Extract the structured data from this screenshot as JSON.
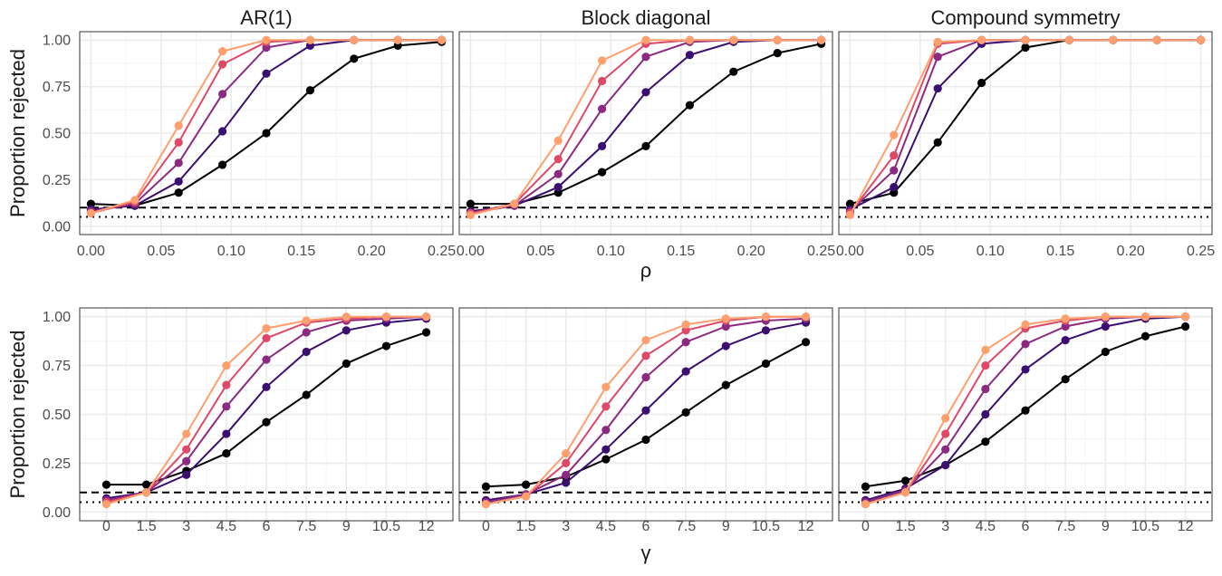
{
  "chart_data": {
    "type": "line",
    "layout": "faceted 2 rows x 3 columns",
    "ylabel": "Proportion rejected",
    "ylim": [
      0,
      1
    ],
    "yticks": [
      "0.00",
      "0.25",
      "0.50",
      "0.75",
      "1.00"
    ],
    "reference_lines": [
      {
        "y": 0.1,
        "style": "dashed"
      },
      {
        "y": 0.05,
        "style": "dotted"
      }
    ],
    "series_colors": [
      "#000000",
      "#3b0f70",
      "#8c2981",
      "#de4968",
      "#fe9f6d"
    ],
    "grid": true,
    "legend": "none",
    "panel_titles": [
      "AR(1)",
      "Block diagonal",
      "Compound symmetry"
    ],
    "rows": [
      {
        "xlabel": "ρ",
        "xlim": [
          -0.008,
          0.258
        ],
        "xticks": [
          0.0,
          0.05,
          0.1,
          0.15,
          0.2,
          0.25
        ],
        "xtick_labels": [
          "0.00",
          "0.05",
          "0.10",
          "0.15",
          "0.20",
          "0.25"
        ],
        "x": [
          0.0,
          0.03125,
          0.0625,
          0.09375,
          0.125,
          0.15625,
          0.1875,
          0.21875,
          0.25
        ],
        "panels": [
          {
            "series": [
              {
                "values": [
                  0.12,
                  0.11,
                  0.18,
                  0.33,
                  0.5,
                  0.73,
                  0.9,
                  0.97,
                  0.99
                ]
              },
              {
                "values": [
                  0.09,
                  0.11,
                  0.24,
                  0.51,
                  0.82,
                  0.97,
                  1.0,
                  1.0,
                  1.0
                ]
              },
              {
                "values": [
                  0.08,
                  0.12,
                  0.34,
                  0.71,
                  0.96,
                  1.0,
                  1.0,
                  1.0,
                  1.0
                ]
              },
              {
                "values": [
                  0.07,
                  0.13,
                  0.45,
                  0.87,
                  0.99,
                  1.0,
                  1.0,
                  1.0,
                  1.0
                ]
              },
              {
                "values": [
                  0.07,
                  0.14,
                  0.54,
                  0.94,
                  1.0,
                  1.0,
                  1.0,
                  1.0,
                  1.0
                ]
              }
            ]
          },
          {
            "series": [
              {
                "values": [
                  0.12,
                  0.12,
                  0.18,
                  0.29,
                  0.43,
                  0.65,
                  0.83,
                  0.93,
                  0.98
                ]
              },
              {
                "values": [
                  0.08,
                  0.11,
                  0.21,
                  0.43,
                  0.72,
                  0.92,
                  0.99,
                  1.0,
                  1.0
                ]
              },
              {
                "values": [
                  0.07,
                  0.11,
                  0.28,
                  0.63,
                  0.91,
                  0.99,
                  1.0,
                  1.0,
                  1.0
                ]
              },
              {
                "values": [
                  0.07,
                  0.12,
                  0.36,
                  0.78,
                  0.98,
                  1.0,
                  1.0,
                  1.0,
                  1.0
                ]
              },
              {
                "values": [
                  0.06,
                  0.12,
                  0.46,
                  0.89,
                  1.0,
                  1.0,
                  1.0,
                  1.0,
                  1.0
                ]
              }
            ]
          },
          {
            "series": [
              {
                "values": [
                  0.12,
                  0.18,
                  0.45,
                  0.77,
                  0.96,
                  1.0,
                  1.0,
                  1.0,
                  1.0
                ]
              },
              {
                "values": [
                  0.09,
                  0.21,
                  0.74,
                  0.98,
                  1.0,
                  1.0,
                  1.0,
                  1.0,
                  1.0
                ]
              },
              {
                "values": [
                  0.08,
                  0.3,
                  0.91,
                  1.0,
                  1.0,
                  1.0,
                  1.0,
                  1.0,
                  1.0
                ]
              },
              {
                "values": [
                  0.07,
                  0.38,
                  0.98,
                  1.0,
                  1.0,
                  1.0,
                  1.0,
                  1.0,
                  1.0
                ]
              },
              {
                "values": [
                  0.06,
                  0.49,
                  0.99,
                  1.0,
                  1.0,
                  1.0,
                  1.0,
                  1.0,
                  1.0
                ]
              }
            ]
          }
        ]
      },
      {
        "xlabel": "γ",
        "xlim": [
          -1.0,
          13.0
        ],
        "xticks": [
          0,
          1.5,
          3,
          4.5,
          6,
          7.5,
          9,
          10.5,
          12
        ],
        "xtick_labels": [
          "0",
          "1.5",
          "3",
          "4.5",
          "6",
          "7.5",
          "9",
          "10.5",
          "12"
        ],
        "x": [
          0,
          1.5,
          3,
          4.5,
          6,
          7.5,
          9,
          10.5,
          12
        ],
        "panels": [
          {
            "series": [
              {
                "values": [
                  0.14,
                  0.14,
                  0.21,
                  0.3,
                  0.46,
                  0.6,
                  0.76,
                  0.85,
                  0.92
                ]
              },
              {
                "values": [
                  0.07,
                  0.1,
                  0.19,
                  0.4,
                  0.64,
                  0.82,
                  0.93,
                  0.97,
                  0.99
                ]
              },
              {
                "values": [
                  0.06,
                  0.1,
                  0.26,
                  0.54,
                  0.78,
                  0.92,
                  0.98,
                  0.99,
                  1.0
                ]
              },
              {
                "values": [
                  0.05,
                  0.1,
                  0.32,
                  0.65,
                  0.89,
                  0.97,
                  0.99,
                  1.0,
                  1.0
                ]
              },
              {
                "values": [
                  0.04,
                  0.1,
                  0.4,
                  0.75,
                  0.94,
                  0.98,
                  1.0,
                  1.0,
                  1.0
                ]
              }
            ]
          },
          {
            "series": [
              {
                "values": [
                  0.13,
                  0.14,
                  0.18,
                  0.27,
                  0.37,
                  0.51,
                  0.65,
                  0.76,
                  0.87
                ]
              },
              {
                "values": [
                  0.06,
                  0.09,
                  0.15,
                  0.32,
                  0.52,
                  0.72,
                  0.85,
                  0.93,
                  0.97
                ]
              },
              {
                "values": [
                  0.05,
                  0.09,
                  0.19,
                  0.42,
                  0.69,
                  0.87,
                  0.95,
                  0.98,
                  0.99
                ]
              },
              {
                "values": [
                  0.04,
                  0.08,
                  0.25,
                  0.54,
                  0.8,
                  0.93,
                  0.98,
                  1.0,
                  1.0
                ]
              },
              {
                "values": [
                  0.04,
                  0.08,
                  0.3,
                  0.64,
                  0.88,
                  0.96,
                  0.99,
                  1.0,
                  1.0
                ]
              }
            ]
          },
          {
            "series": [
              {
                "values": [
                  0.13,
                  0.16,
                  0.24,
                  0.36,
                  0.52,
                  0.68,
                  0.82,
                  0.9,
                  0.95
                ]
              },
              {
                "values": [
                  0.06,
                  0.12,
                  0.24,
                  0.5,
                  0.73,
                  0.88,
                  0.95,
                  0.99,
                  1.0
                ]
              },
              {
                "values": [
                  0.05,
                  0.11,
                  0.32,
                  0.63,
                  0.86,
                  0.95,
                  0.99,
                  1.0,
                  1.0
                ]
              },
              {
                "values": [
                  0.04,
                  0.1,
                  0.4,
                  0.75,
                  0.94,
                  0.98,
                  1.0,
                  1.0,
                  1.0
                ]
              },
              {
                "values": [
                  0.04,
                  0.1,
                  0.48,
                  0.83,
                  0.96,
                  0.99,
                  1.0,
                  1.0,
                  1.0
                ]
              }
            ]
          }
        ]
      }
    ]
  }
}
